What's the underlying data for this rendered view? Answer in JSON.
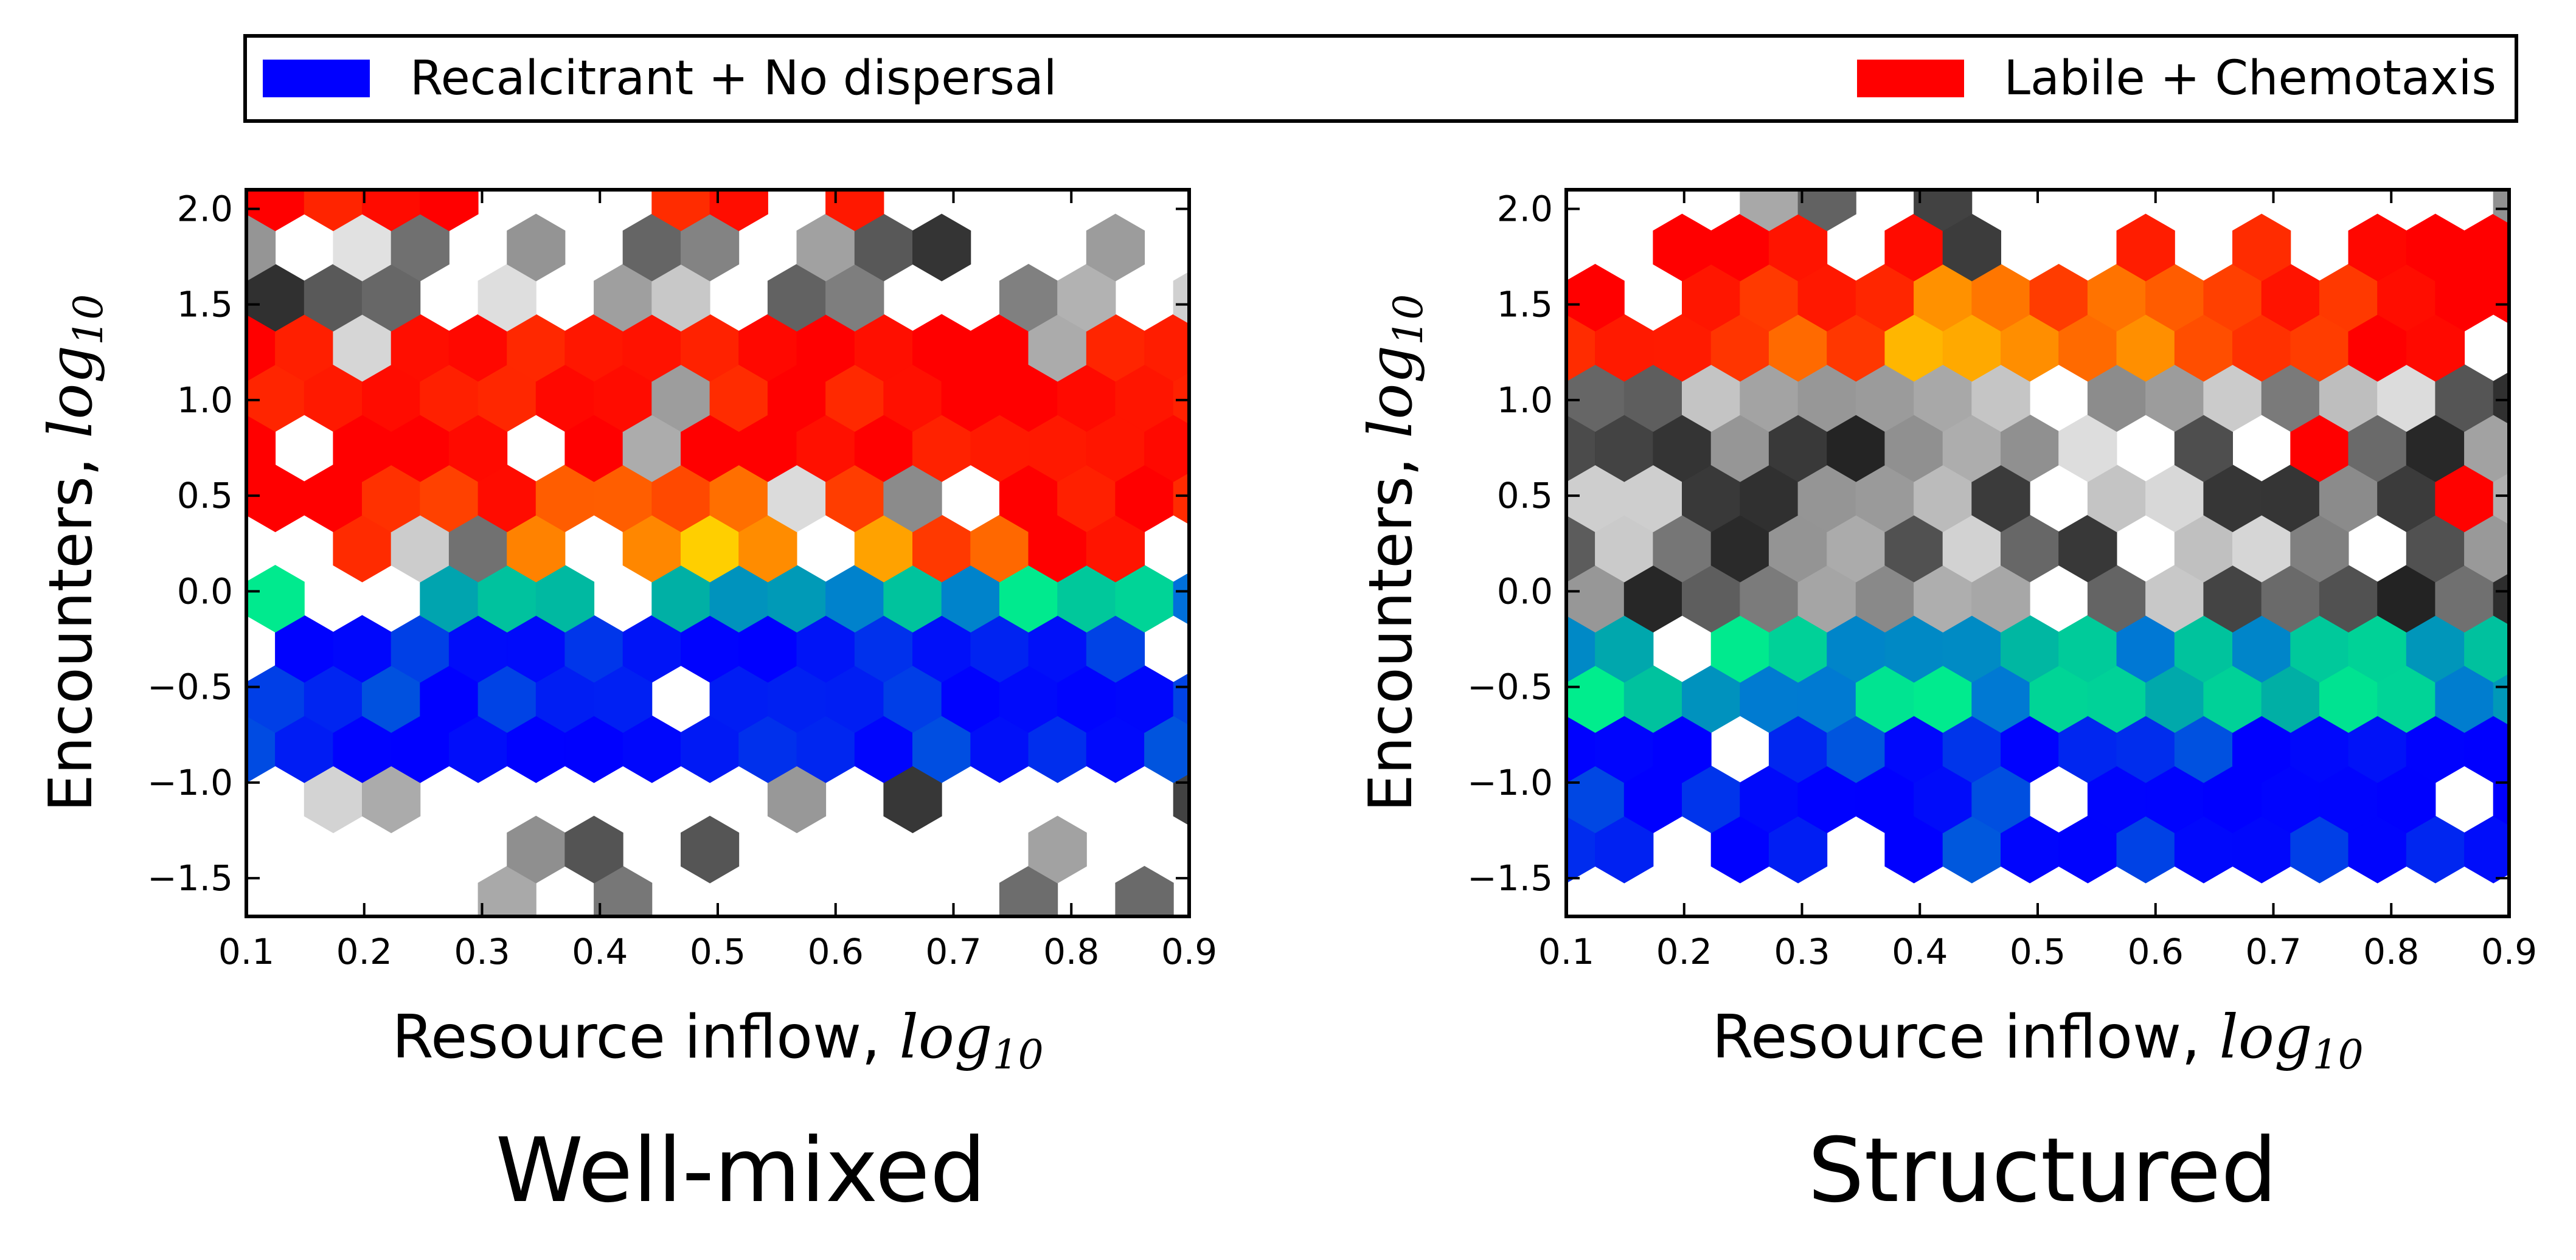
{
  "legend": {
    "entries": [
      {
        "label": "Recalcitrant + No dispersal",
        "color": "#0000ff"
      },
      {
        "label": "Labile + Chemotaxis",
        "color": "#ff0000"
      }
    ]
  },
  "chart_data": [
    {
      "type": "heatmap",
      "subtype": "hexbin",
      "title": "Well-mixed",
      "xlabel": "Resource inflow,",
      "xlabel_math": "log",
      "xlabel_sub": "10",
      "ylabel": "Encounters,",
      "ylabel_math": "log",
      "ylabel_sub": "10",
      "xlim": [
        0.1,
        0.9
      ],
      "ylim": [
        -1.7,
        2.1
      ],
      "xticks": [
        "0.1",
        "0.2",
        "0.3",
        "0.4",
        "0.5",
        "0.6",
        "0.7",
        "0.8",
        "0.9"
      ],
      "yticks": [
        "−1.5",
        "−1.0",
        "−0.5",
        "0.0",
        "0.5",
        "1.0",
        "1.5",
        "2.0"
      ],
      "xtick_values": [
        0.1,
        0.2,
        0.3,
        0.4,
        0.5,
        0.6,
        0.7,
        0.8,
        0.9
      ],
      "ytick_values": [
        -1.5,
        -1.0,
        -0.5,
        0.0,
        0.5,
        1.0,
        1.5,
        2.0
      ],
      "bands": [
        {
          "group": "red",
          "y_range": [
            1.95,
            2.1
          ],
          "density": 0.35
        },
        {
          "group": "gray",
          "y_range": [
            1.5,
            2.0
          ],
          "density": 0.6
        },
        {
          "group": "red",
          "y_range": [
            0.6,
            1.5
          ],
          "density": 0.95
        },
        {
          "group": "red",
          "y_range": [
            0.0,
            0.6
          ],
          "density": 0.85
        },
        {
          "group": "teal",
          "y_range": [
            -0.3,
            0.0
          ],
          "density": 0.85
        },
        {
          "group": "blue",
          "y_range": [
            -0.9,
            -0.3
          ],
          "density": 0.9
        },
        {
          "group": "gray",
          "y_range": [
            -1.7,
            -0.9
          ],
          "density": 0.35
        }
      ],
      "hot_spot": {
        "x": 0.5,
        "y": 0.25
      }
    },
    {
      "type": "heatmap",
      "subtype": "hexbin",
      "title": "Structured",
      "xlabel": "Resource inflow,",
      "xlabel_math": "log",
      "xlabel_sub": "10",
      "ylabel": "Encounters,",
      "ylabel_math": "log",
      "ylabel_sub": "10",
      "xlim": [
        0.1,
        0.9
      ],
      "ylim": [
        -1.7,
        2.1
      ],
      "xticks": [
        "0.1",
        "0.2",
        "0.3",
        "0.4",
        "0.5",
        "0.6",
        "0.7",
        "0.8",
        "0.9"
      ],
      "yticks": [
        "−1.5",
        "−1.0",
        "−0.5",
        "0.0",
        "0.5",
        "1.0",
        "1.5",
        "2.0"
      ],
      "xtick_values": [
        0.1,
        0.2,
        0.3,
        0.4,
        0.5,
        0.6,
        0.7,
        0.8,
        0.9
      ],
      "ytick_values": [
        -1.5,
        -1.0,
        -0.5,
        0.0,
        0.5,
        1.0,
        1.5,
        2.0
      ],
      "bands": [
        {
          "group": "gray",
          "y_range": [
            1.8,
            2.1
          ],
          "density": 0.3
        },
        {
          "group": "red",
          "y_range": [
            1.6,
            1.95
          ],
          "density": 0.6
        },
        {
          "group": "red",
          "y_range": [
            1.1,
            1.6
          ],
          "density": 0.95
        },
        {
          "group": "gray",
          "y_range": [
            0.3,
            1.1
          ],
          "density": 0.9
        },
        {
          "group": "gray",
          "y_range": [
            -0.05,
            0.3
          ],
          "density": 0.95
        },
        {
          "group": "teal",
          "y_range": [
            -0.65,
            -0.05
          ],
          "density": 0.95
        },
        {
          "group": "blue",
          "y_range": [
            -1.5,
            -0.65
          ],
          "density": 0.85
        }
      ],
      "hot_spot": {
        "x": 0.5,
        "y": 1.35
      }
    }
  ]
}
